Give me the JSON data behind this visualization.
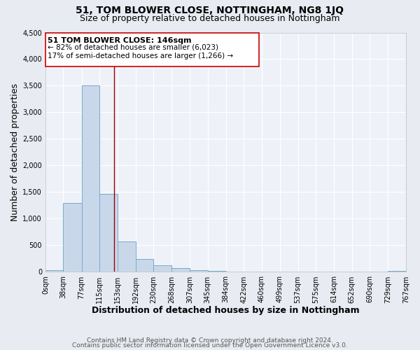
{
  "title": "51, TOM BLOWER CLOSE, NOTTINGHAM, NG8 1JQ",
  "subtitle": "Size of property relative to detached houses in Nottingham",
  "xlabel": "Distribution of detached houses by size in Nottingham",
  "ylabel": "Number of detached properties",
  "bin_edges": [
    0,
    38,
    77,
    115,
    153,
    192,
    230,
    268,
    307,
    345,
    384,
    422,
    460,
    499,
    537,
    575,
    614,
    652,
    690,
    729,
    767
  ],
  "bar_heights": [
    30,
    1290,
    3500,
    1470,
    570,
    240,
    130,
    75,
    35,
    15,
    10,
    8,
    0,
    0,
    0,
    0,
    0,
    0,
    0,
    20
  ],
  "bar_color": "#c8d8ea",
  "bar_edge_color": "#7aaac8",
  "vline_x": 146,
  "vline_color": "#990000",
  "ann_line1": "51 TOM BLOWER CLOSE: 146sqm",
  "ann_line2": "← 82% of detached houses are smaller (6,023)",
  "ann_line3": "17% of semi-detached houses are larger (1,266) →",
  "ylim": [
    0,
    4500
  ],
  "yticks": [
    0,
    500,
    1000,
    1500,
    2000,
    2500,
    3000,
    3500,
    4000,
    4500
  ],
  "tick_labels": [
    "0sqm",
    "38sqm",
    "77sqm",
    "115sqm",
    "153sqm",
    "192sqm",
    "230sqm",
    "268sqm",
    "307sqm",
    "345sqm",
    "384sqm",
    "422sqm",
    "460sqm",
    "499sqm",
    "537sqm",
    "575sqm",
    "614sqm",
    "652sqm",
    "690sqm",
    "729sqm",
    "767sqm"
  ],
  "footer1": "Contains HM Land Registry data © Crown copyright and database right 2024.",
  "footer2": "Contains public sector information licensed under the Open Government Licence v3.0.",
  "bg_color": "#e8ecf2",
  "plot_bg_color": "#eef2f8",
  "grid_color": "#ffffff",
  "title_fontsize": 10,
  "subtitle_fontsize": 9,
  "axis_label_fontsize": 9,
  "tick_fontsize": 7,
  "footer_fontsize": 6.5,
  "ann_fontsize_title": 8,
  "ann_fontsize_body": 7.5
}
